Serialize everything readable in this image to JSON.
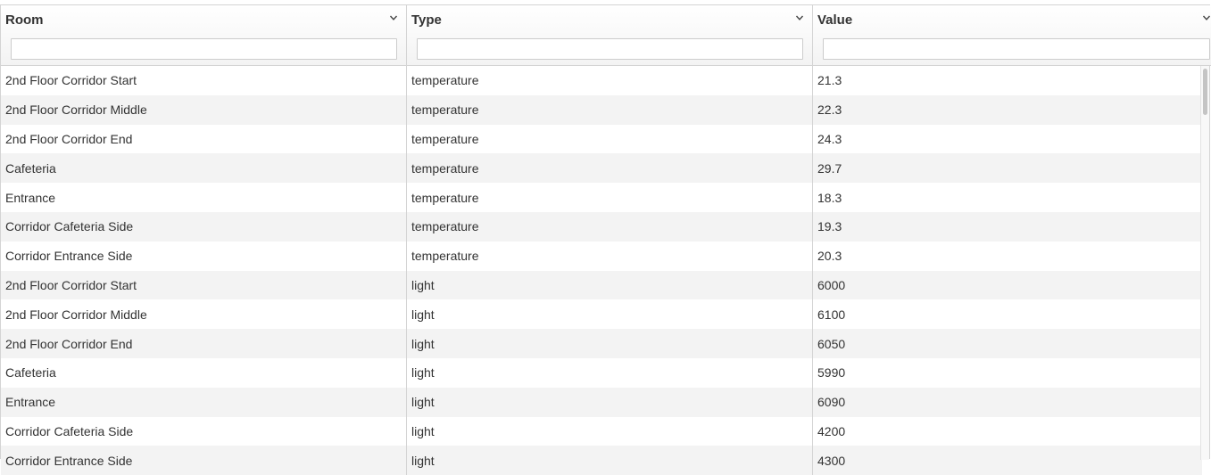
{
  "columns": [
    {
      "label": "Room",
      "filter_value": ""
    },
    {
      "label": "Type",
      "filter_value": ""
    },
    {
      "label": "Value",
      "filter_value": ""
    }
  ],
  "rows": [
    [
      "2nd Floor Corridor Start",
      "temperature",
      "21.3"
    ],
    [
      "2nd Floor Corridor Middle",
      "temperature",
      "22.3"
    ],
    [
      "2nd Floor Corridor End",
      "temperature",
      "24.3"
    ],
    [
      "Cafeteria",
      "temperature",
      "29.7"
    ],
    [
      "Entrance",
      "temperature",
      "18.3"
    ],
    [
      "Corridor Cafeteria Side",
      "temperature",
      "19.3"
    ],
    [
      "Corridor Entrance Side",
      "temperature",
      "20.3"
    ],
    [
      "2nd Floor Corridor Start",
      "light",
      "6000"
    ],
    [
      "2nd Floor Corridor Middle",
      "light",
      "6100"
    ],
    [
      "2nd Floor Corridor End",
      "light",
      "6050"
    ],
    [
      "Cafeteria",
      "light",
      "5990"
    ],
    [
      "Entrance",
      "light",
      "6090"
    ],
    [
      "Corridor Cafeteria Side",
      "light",
      "4200"
    ],
    [
      "Corridor Entrance Side",
      "light",
      "4300"
    ]
  ],
  "icons": {
    "column_menu": "chevron-down-icon"
  }
}
